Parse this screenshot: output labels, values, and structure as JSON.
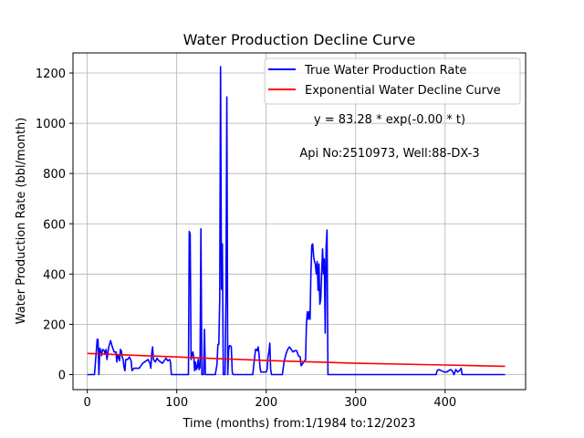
{
  "chart_data": {
    "type": "line",
    "title": "Water Production Decline Curve",
    "xlabel": "Time (months) from:1/1984 to:12/2023",
    "ylabel": "Water Production Rate (bbl/month)",
    "xlim": [
      -16,
      490
    ],
    "ylim": [
      -60,
      1280
    ],
    "xticks": [
      0,
      100,
      200,
      300,
      400
    ],
    "yticks": [
      0,
      200,
      400,
      600,
      800,
      1000,
      1200
    ],
    "grid": true,
    "legend_position": "top-right",
    "annotations": [
      "y = 83.28 * exp(-0.00 * t)",
      "Api No:2510973, Well:88-DX-3"
    ],
    "series": [
      {
        "name": "True Water Production Rate",
        "color": "#0000ff",
        "points": [
          [
            0,
            0
          ],
          [
            8,
            0
          ],
          [
            10,
            90
          ],
          [
            11,
            140
          ],
          [
            12,
            140
          ],
          [
            13,
            0
          ],
          [
            14,
            105
          ],
          [
            15,
            90
          ],
          [
            16,
            75
          ],
          [
            17,
            100
          ],
          [
            19,
            95
          ],
          [
            20,
            80
          ],
          [
            21,
            100
          ],
          [
            22,
            60
          ],
          [
            24,
            110
          ],
          [
            26,
            135
          ],
          [
            28,
            110
          ],
          [
            30,
            90
          ],
          [
            32,
            90
          ],
          [
            33,
            50
          ],
          [
            34,
            80
          ],
          [
            36,
            55
          ],
          [
            37,
            100
          ],
          [
            38,
            95
          ],
          [
            39,
            70
          ],
          [
            40,
            60
          ],
          [
            41,
            30
          ],
          [
            42,
            15
          ],
          [
            43,
            60
          ],
          [
            45,
            60
          ],
          [
            47,
            70
          ],
          [
            49,
            55
          ],
          [
            50,
            15
          ],
          [
            52,
            25
          ],
          [
            55,
            25
          ],
          [
            58,
            25
          ],
          [
            60,
            35
          ],
          [
            62,
            45
          ],
          [
            64,
            50
          ],
          [
            66,
            55
          ],
          [
            68,
            60
          ],
          [
            70,
            45
          ],
          [
            71,
            25
          ],
          [
            72,
            85
          ],
          [
            73,
            110
          ],
          [
            74,
            60
          ],
          [
            76,
            50
          ],
          [
            78,
            65
          ],
          [
            80,
            55
          ],
          [
            82,
            50
          ],
          [
            84,
            45
          ],
          [
            86,
            55
          ],
          [
            88,
            65
          ],
          [
            90,
            55
          ],
          [
            92,
            60
          ],
          [
            93,
            50
          ],
          [
            94,
            0
          ],
          [
            98,
            0
          ],
          [
            104,
            0
          ],
          [
            110,
            0
          ],
          [
            113,
            0
          ],
          [
            114,
            570
          ],
          [
            115,
            560
          ],
          [
            116,
            60
          ],
          [
            117,
            80
          ],
          [
            118,
            90
          ],
          [
            119,
            70
          ],
          [
            120,
            15
          ],
          [
            121,
            50
          ],
          [
            122,
            20
          ],
          [
            123,
            30
          ],
          [
            124,
            60
          ],
          [
            125,
            20
          ],
          [
            126,
            30
          ],
          [
            127,
            580
          ],
          [
            128,
            0
          ],
          [
            129,
            0
          ],
          [
            130,
            0
          ],
          [
            131,
            180
          ],
          [
            132,
            0
          ],
          [
            135,
            0
          ],
          [
            138,
            0
          ],
          [
            140,
            0
          ],
          [
            143,
            0
          ],
          [
            145,
            40
          ],
          [
            146,
            120
          ],
          [
            147,
            120
          ],
          [
            148,
            300
          ],
          [
            149,
            1225
          ],
          [
            150,
            340
          ],
          [
            151,
            520
          ],
          [
            152,
            0
          ],
          [
            153,
            0
          ],
          [
            154,
            0
          ],
          [
            155,
            300
          ],
          [
            156,
            1105
          ],
          [
            157,
            0
          ],
          [
            158,
            100
          ],
          [
            159,
            115
          ],
          [
            160,
            115
          ],
          [
            161,
            110
          ],
          [
            162,
            10
          ],
          [
            163,
            0
          ],
          [
            165,
            0
          ],
          [
            170,
            0
          ],
          [
            175,
            0
          ],
          [
            180,
            0
          ],
          [
            185,
            0
          ],
          [
            188,
            100
          ],
          [
            189,
            100
          ],
          [
            190,
            95
          ],
          [
            191,
            110
          ],
          [
            192,
            80
          ],
          [
            193,
            30
          ],
          [
            194,
            10
          ],
          [
            196,
            10
          ],
          [
            198,
            10
          ],
          [
            200,
            10
          ],
          [
            201,
            20
          ],
          [
            202,
            70
          ],
          [
            203,
            90
          ],
          [
            204,
            125
          ],
          [
            205,
            20
          ],
          [
            206,
            0
          ],
          [
            208,
            0
          ],
          [
            212,
            0
          ],
          [
            218,
            0
          ],
          [
            220,
            50
          ],
          [
            222,
            80
          ],
          [
            224,
            100
          ],
          [
            226,
            110
          ],
          [
            228,
            100
          ],
          [
            230,
            90
          ],
          [
            232,
            95
          ],
          [
            234,
            95
          ],
          [
            236,
            75
          ],
          [
            238,
            70
          ],
          [
            239,
            35
          ],
          [
            240,
            40
          ],
          [
            242,
            50
          ],
          [
            244,
            60
          ],
          [
            245,
            200
          ],
          [
            246,
            250
          ],
          [
            247,
            220
          ],
          [
            248,
            250
          ],
          [
            249,
            220
          ],
          [
            250,
            400
          ],
          [
            251,
            515
          ],
          [
            252,
            520
          ],
          [
            253,
            470
          ],
          [
            254,
            450
          ],
          [
            255,
            440
          ],
          [
            256,
            400
          ],
          [
            257,
            450
          ],
          [
            258,
            335
          ],
          [
            259,
            440
          ],
          [
            260,
            280
          ],
          [
            261,
            300
          ],
          [
            262,
            400
          ],
          [
            263,
            500
          ],
          [
            264,
            400
          ],
          [
            265,
            460
          ],
          [
            266,
            165
          ],
          [
            267,
            510
          ],
          [
            268,
            575
          ],
          [
            269,
            0
          ],
          [
            270,
            0
          ],
          [
            280,
            0
          ],
          [
            300,
            0
          ],
          [
            350,
            0
          ],
          [
            390,
            0
          ],
          [
            391,
            15
          ],
          [
            393,
            20
          ],
          [
            396,
            15
          ],
          [
            399,
            10
          ],
          [
            402,
            10
          ],
          [
            404,
            15
          ],
          [
            406,
            20
          ],
          [
            408,
            15
          ],
          [
            410,
            0
          ],
          [
            412,
            20
          ],
          [
            414,
            10
          ],
          [
            416,
            15
          ],
          [
            418,
            25
          ],
          [
            419,
            0
          ],
          [
            420,
            0
          ],
          [
            430,
            0
          ],
          [
            440,
            0
          ],
          [
            450,
            0
          ],
          [
            467,
            0
          ]
        ]
      },
      {
        "name": "Exponential Water Decline Curve",
        "color": "#ff0000",
        "points": [
          [
            0,
            84
          ],
          [
            100,
            70
          ],
          [
            200,
            56
          ],
          [
            300,
            45
          ],
          [
            400,
            38
          ],
          [
            467,
            33
          ]
        ]
      }
    ]
  }
}
